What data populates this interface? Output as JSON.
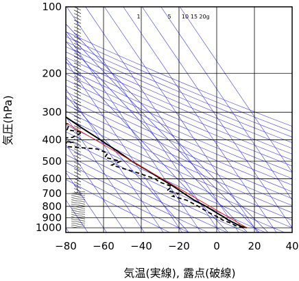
{
  "chart_data": {
    "type": "line",
    "chart_kind": "skew-T log-P sounding",
    "xlabel": "気温(実線), 露点(破線)",
    "ylabel": "気圧(hPa)",
    "x_ticks": [
      -80,
      -60,
      -40,
      -20,
      0,
      20,
      40
    ],
    "x_tick_labels": [
      "−80",
      "−60",
      "−40",
      "−20",
      "0",
      "20",
      "40"
    ],
    "y_ticks": [
      100,
      200,
      300,
      400,
      500,
      600,
      700,
      800,
      900,
      1000
    ],
    "y_scale": "log",
    "ylim": [
      100,
      1050
    ],
    "xlim": [
      -80,
      40
    ],
    "mixing_ratio_labels": [
      "1",
      "5",
      "10",
      "15",
      "20g"
    ],
    "mixing_ratio_values": [
      1,
      5,
      10,
      15,
      20
    ],
    "series": [
      {
        "role": "temperature",
        "style": "solid",
        "points": [
          [
            1000,
            16
          ],
          [
            980,
            13
          ],
          [
            950,
            11
          ],
          [
            925,
            9
          ],
          [
            900,
            8
          ],
          [
            850,
            5
          ],
          [
            800,
            2
          ],
          [
            750,
            -2
          ],
          [
            700,
            -5
          ],
          [
            650,
            -8
          ],
          [
            600,
            -12
          ],
          [
            550,
            -16
          ],
          [
            500,
            -21
          ],
          [
            450,
            -25
          ],
          [
            420,
            -28
          ],
          [
            400,
            -30
          ],
          [
            350,
            -36
          ],
          [
            300,
            -42
          ],
          [
            280,
            -45
          ],
          [
            250,
            -48
          ],
          [
            230,
            -51
          ],
          [
            220,
            -50
          ],
          [
            200,
            -52
          ],
          [
            175,
            -53
          ],
          [
            150,
            -58
          ],
          [
            130,
            -60
          ],
          [
            120,
            -61
          ],
          [
            110,
            -63
          ],
          [
            100,
            -65
          ]
        ]
      },
      {
        "role": "dewpoint",
        "style": "dashed",
        "points": [
          [
            1000,
            14
          ],
          [
            980,
            11
          ],
          [
            950,
            9
          ],
          [
            925,
            6
          ],
          [
            900,
            5
          ],
          [
            850,
            1
          ],
          [
            800,
            -2
          ],
          [
            750,
            -6
          ],
          [
            720,
            -12
          ],
          [
            700,
            -8
          ],
          [
            680,
            -13
          ],
          [
            650,
            -9
          ],
          [
            620,
            -14
          ],
          [
            600,
            -15
          ],
          [
            560,
            -23
          ],
          [
            540,
            -28
          ],
          [
            520,
            -33
          ],
          [
            500,
            -27
          ],
          [
            480,
            -34
          ],
          [
            460,
            -31
          ],
          [
            440,
            -35
          ],
          [
            430,
            -49
          ],
          [
            420,
            -60
          ],
          [
            410,
            -45
          ],
          [
            400,
            -62
          ],
          [
            390,
            -44
          ],
          [
            370,
            -37
          ],
          [
            360,
            -44
          ],
          [
            340,
            -41
          ],
          [
            320,
            -52
          ],
          [
            300,
            -58
          ],
          [
            295,
            -72
          ]
        ]
      },
      {
        "role": "lifted parcel",
        "style": "red",
        "points": [
          [
            1000,
            16
          ],
          [
            300,
            -48
          ],
          [
            190,
            -87
          ]
        ]
      }
    ],
    "wind_barbs": "left strip, ~100–1000 hPa",
    "colors": {
      "grid": "#000000",
      "guides": "#3a3ae8",
      "temperature": "#000000",
      "dewpoint": "#000000",
      "parcel": "#ee2222"
    },
    "grid": true
  }
}
